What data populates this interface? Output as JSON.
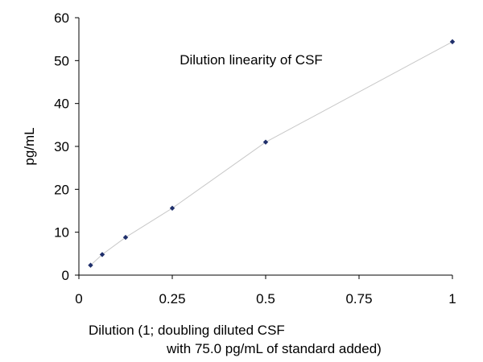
{
  "chart_data": {
    "type": "line",
    "title": "Dilution linearity of CSF",
    "xlabel_line1": "Dilution (1; doubling diluted CSF",
    "xlabel_line2": "with 75.0 pg/mL of standard added)",
    "ylabel": "pg/mL",
    "xlim": [
      0,
      1
    ],
    "ylim": [
      0,
      60
    ],
    "xticks": [
      0,
      0.25,
      0.5,
      0.75,
      1
    ],
    "xtick_labels": [
      "0",
      "0.25",
      "0.5",
      "0.75",
      "1"
    ],
    "yticks": [
      0,
      10,
      20,
      30,
      40,
      50,
      60
    ],
    "ytick_labels": [
      "0",
      "10",
      "20",
      "30",
      "40",
      "50",
      "60"
    ],
    "grid": false,
    "legend": "none",
    "series": [
      {
        "x": [
          0.03125,
          0.0625,
          0.125,
          0.25,
          0.5,
          1
        ],
        "y": [
          2.3,
          4.8,
          8.8,
          15.6,
          31.0,
          54.4
        ]
      }
    ],
    "colors": {
      "marker": "#1f2f6b",
      "line": "#c8c8c8",
      "axis": "#000000"
    }
  }
}
